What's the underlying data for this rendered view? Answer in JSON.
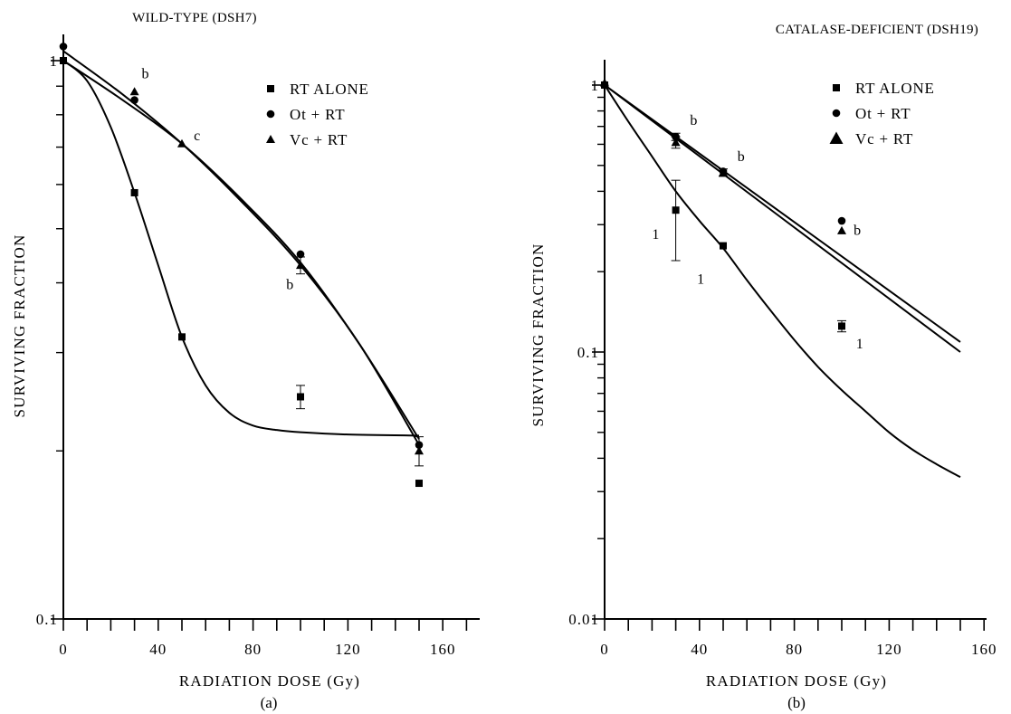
{
  "chart_data": [
    {
      "type": "scatter",
      "title": "WILD-TYPE (DSH7)",
      "panel_label": "(a)",
      "xlabel": "RADIATION DOSE (Gy)",
      "ylabel": "SURVIVING FRACTION",
      "xlim": [
        0,
        170
      ],
      "ylim": [
        0.1,
        1.1
      ],
      "yscale": "log",
      "xticks": [
        0,
        40,
        80,
        120,
        160
      ],
      "yticks": [
        {
          "value": 0.1,
          "label": "0.1"
        },
        {
          "value": 1,
          "label": "1"
        }
      ],
      "grid": false,
      "legend_position": "top-right",
      "series": [
        {
          "name": "RT ALONE",
          "marker": "square",
          "points": [
            {
              "x": 0,
              "y": 1.0
            },
            {
              "x": 30,
              "y": 0.58
            },
            {
              "x": 50,
              "y": 0.32
            },
            {
              "x": 100,
              "y": 0.25,
              "err": 0.012
            },
            {
              "x": 150,
              "y": 0.175
            }
          ],
          "curve": [
            [
              0,
              1.0
            ],
            [
              10,
              0.92
            ],
            [
              20,
              0.76
            ],
            [
              30,
              0.58
            ],
            [
              40,
              0.43
            ],
            [
              50,
              0.32
            ],
            [
              60,
              0.262
            ],
            [
              70,
              0.234
            ],
            [
              80,
              0.222
            ],
            [
              90,
              0.218
            ],
            [
              100,
              0.216
            ],
            [
              120,
              0.214
            ],
            [
              150,
              0.213
            ]
          ]
        },
        {
          "name": "Ot + RT",
          "marker": "circle",
          "points": [
            {
              "x": 0,
              "y": 1.06
            },
            {
              "x": 30,
              "y": 0.85
            },
            {
              "x": 100,
              "y": 0.45
            },
            {
              "x": 150,
              "y": 0.205
            }
          ],
          "curve": [
            [
              0,
              1.04
            ],
            [
              25,
              0.87
            ],
            [
              50,
              0.71
            ],
            [
              75,
              0.56
            ],
            [
              100,
              0.43
            ],
            [
              125,
              0.31
            ],
            [
              150,
              0.205
            ]
          ]
        },
        {
          "name": "Vc + RT",
          "marker": "triangle",
          "points": [
            {
              "x": 30,
              "y": 0.88
            },
            {
              "x": 50,
              "y": 0.71
            },
            {
              "x": 100,
              "y": 0.43,
              "err": 0.015
            },
            {
              "x": 150,
              "y": 0.2,
              "err": 0.012
            }
          ],
          "curve": [
            [
              0,
              1.0
            ],
            [
              25,
              0.85
            ],
            [
              50,
              0.71
            ],
            [
              75,
              0.565
            ],
            [
              100,
              0.435
            ],
            [
              125,
              0.31
            ],
            [
              150,
              0.21
            ]
          ]
        }
      ],
      "annotations": [
        {
          "text": "b",
          "x": 33,
          "y": 0.93
        },
        {
          "text": "c",
          "x": 55,
          "y": 0.72
        },
        {
          "text": "b",
          "x": 94,
          "y": 0.39
        }
      ]
    },
    {
      "type": "scatter",
      "title": "CATALASE-DEFICIENT (DSH19)",
      "panel_label": "(b)",
      "xlabel": "RADIATION DOSE (Gy)",
      "ylabel": "SURVIVING FRACTION",
      "xlim": [
        0,
        170
      ],
      "ylim": [
        0.01,
        1.4
      ],
      "yscale": "log",
      "xticks": [
        0,
        40,
        80,
        120,
        160
      ],
      "yticks": [
        {
          "value": 0.01,
          "label": "0.01"
        },
        {
          "value": 0.1,
          "label": "0.1"
        },
        {
          "value": 1,
          "label": "1"
        }
      ],
      "grid": false,
      "legend_position": "top-right",
      "series": [
        {
          "name": "RT ALONE",
          "marker": "square",
          "points": [
            {
              "x": 0,
              "y": 1.0
            },
            {
              "x": 30,
              "y": 0.34,
              "err_low": 0.12,
              "err_high": 0.1
            },
            {
              "x": 50,
              "y": 0.25
            },
            {
              "x": 100,
              "y": 0.125,
              "err": 0.006
            }
          ],
          "curve": [
            [
              0,
              1.0
            ],
            [
              10,
              0.73
            ],
            [
              20,
              0.54
            ],
            [
              30,
              0.4
            ],
            [
              40,
              0.31
            ],
            [
              50,
              0.245
            ],
            [
              60,
              0.186
            ],
            [
              70,
              0.143
            ],
            [
              80,
              0.111
            ],
            [
              90,
              0.088
            ],
            [
              100,
              0.072
            ],
            [
              110,
              0.06
            ],
            [
              120,
              0.05
            ],
            [
              130,
              0.043
            ],
            [
              140,
              0.038
            ],
            [
              150,
              0.034
            ]
          ]
        },
        {
          "name": "Ot + RT",
          "marker": "circle",
          "points": [
            {
              "x": 0,
              "y": 1.0
            },
            {
              "x": 30,
              "y": 0.64,
              "err": 0.02
            },
            {
              "x": 50,
              "y": 0.475
            },
            {
              "x": 100,
              "y": 0.31
            }
          ],
          "curve": [
            [
              0,
              1.0
            ],
            [
              150,
              0.109
            ]
          ]
        },
        {
          "name": "Vc + RT",
          "marker": "triangle",
          "points": [
            {
              "x": 0,
              "y": 1.02
            },
            {
              "x": 30,
              "y": 0.61,
              "err": 0.03
            },
            {
              "x": 50,
              "y": 0.47,
              "err": 0.015
            },
            {
              "x": 100,
              "y": 0.285
            }
          ],
          "curve": [
            [
              0,
              1.0
            ],
            [
              150,
              0.1
            ]
          ]
        }
      ],
      "annotations": [
        {
          "text": "b",
          "x": 36,
          "y": 0.71
        },
        {
          "text": "b",
          "x": 56,
          "y": 0.52
        },
        {
          "text": "b",
          "x": 105,
          "y": 0.275
        },
        {
          "text": "1",
          "x": 20,
          "y": 0.265
        },
        {
          "text": "1",
          "x": 39,
          "y": 0.18
        },
        {
          "text": "1",
          "x": 106,
          "y": 0.103
        }
      ]
    }
  ]
}
